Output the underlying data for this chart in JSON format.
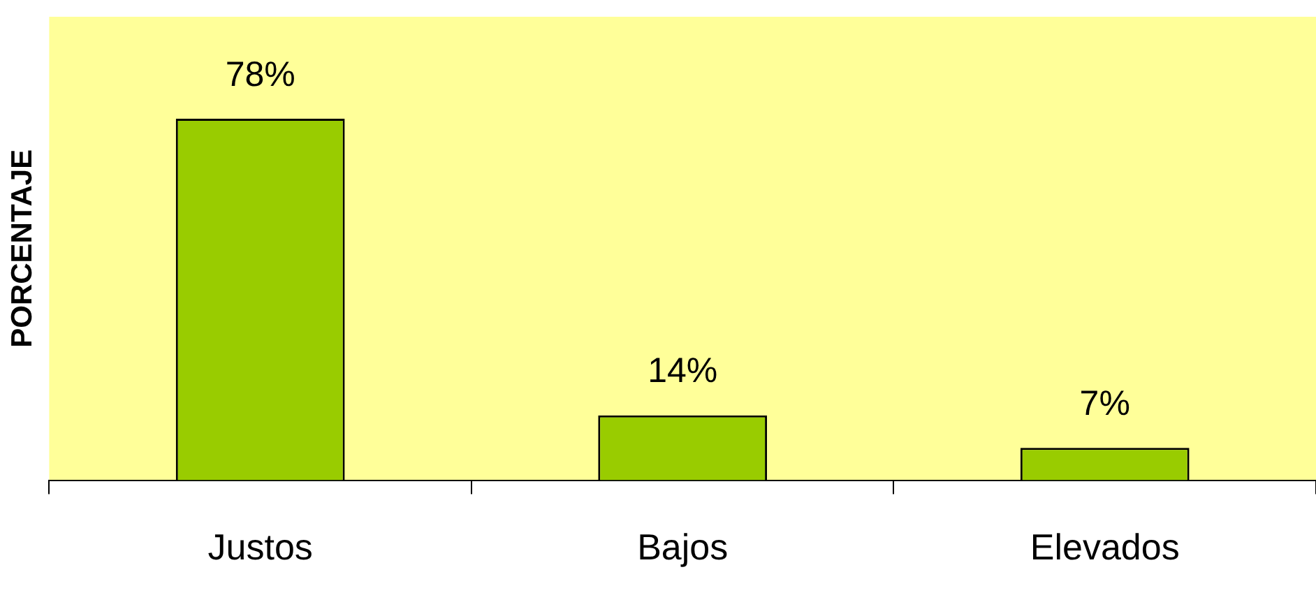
{
  "chart_data": {
    "type": "bar",
    "ylabel": "PORCENTAJE",
    "categories": [
      "Justos",
      "Bajos",
      "Elevados"
    ],
    "values": [
      78,
      14,
      7
    ],
    "color": "#99cc00",
    "value_labels": [
      "78%",
      "14%",
      "7%"
    ],
    "ylim": [
      0,
      100
    ],
    "grid": false,
    "legend": false
  }
}
